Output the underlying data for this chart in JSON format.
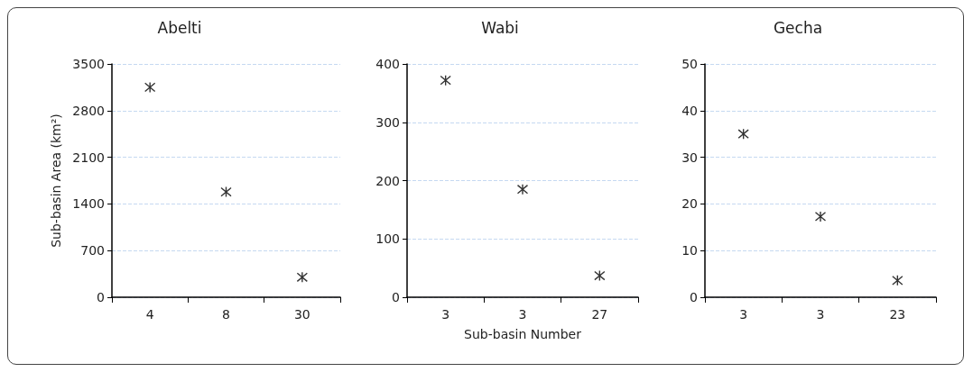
{
  "chart_data": [
    {
      "type": "scatter",
      "title": "Abelti",
      "ylabel": "Sub-basin Area (km²)",
      "categories": [
        "4",
        "8",
        "30"
      ],
      "values": [
        3150,
        1580,
        300
      ],
      "color": "#000000",
      "ylim": [
        0,
        3500
      ],
      "yticks": [
        0,
        700,
        1400,
        2100,
        2800,
        3500
      ],
      "grid": "y",
      "marker": "cross"
    },
    {
      "type": "scatter",
      "title": "Wabi",
      "xlabel": "Sub-basin Number",
      "categories": [
        "3",
        "3",
        "27"
      ],
      "values": [
        372,
        185,
        37
      ],
      "color": "#000000",
      "ylim": [
        0,
        400
      ],
      "yticks": [
        0,
        100,
        200,
        300,
        400
      ],
      "grid": "y",
      "marker": "cross"
    },
    {
      "type": "scatter",
      "title": "Gecha",
      "categories": [
        "3",
        "3",
        "23"
      ],
      "values": [
        35,
        17.3,
        3.6
      ],
      "color": "#000000",
      "ylim": [
        0,
        50
      ],
      "yticks": [
        0,
        10,
        20,
        30,
        40,
        50
      ],
      "grid": "y",
      "marker": "cross"
    }
  ]
}
